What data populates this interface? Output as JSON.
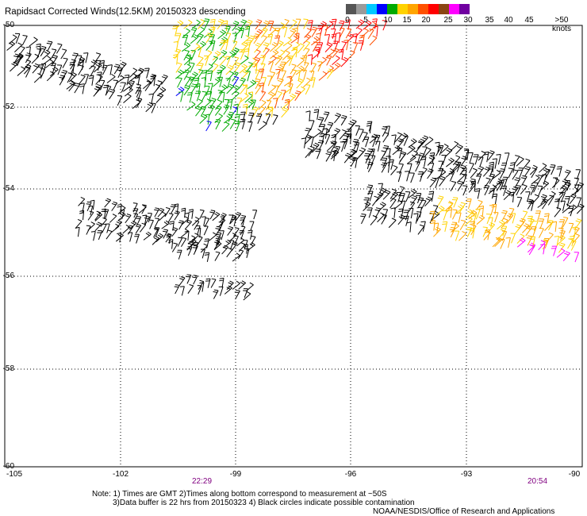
{
  "title": "Rapidsact Corrected Winds(12.5KM) 20150323 descending",
  "colorbar": {
    "labels": [
      "0",
      "5",
      "10",
      "15",
      "20",
      "25",
      "30",
      "35",
      "40",
      "45",
      ">50 knots"
    ],
    "colors": [
      "#555555",
      "#9a9a9a",
      "#00c8ff",
      "#0000ff",
      "#00aa00",
      "#ffd200",
      "#ffa500",
      "#ff5000",
      "#ff0000",
      "#8b4513",
      "#ff00ff",
      "#7000a0"
    ]
  },
  "axes": {
    "lon_ticks": [
      "-105",
      "-102",
      "-99",
      "-96",
      "-93",
      "-90"
    ],
    "lat_ticks": [
      "-50",
      "-52",
      "-54",
      "-56",
      "-58",
      "-60"
    ]
  },
  "times": {
    "left": "22:29",
    "right": "20:54"
  },
  "notes": {
    "line1": "Note: 1) Times are GMT 2)Times along bottom correspond to measurement at ~50S",
    "line2": "3)Data buffer is 22 hrs from 20150323 4) Black circles indicate possible contamination",
    "line3": "NOAA/NESDIS/Office of Research and Applications"
  }
}
